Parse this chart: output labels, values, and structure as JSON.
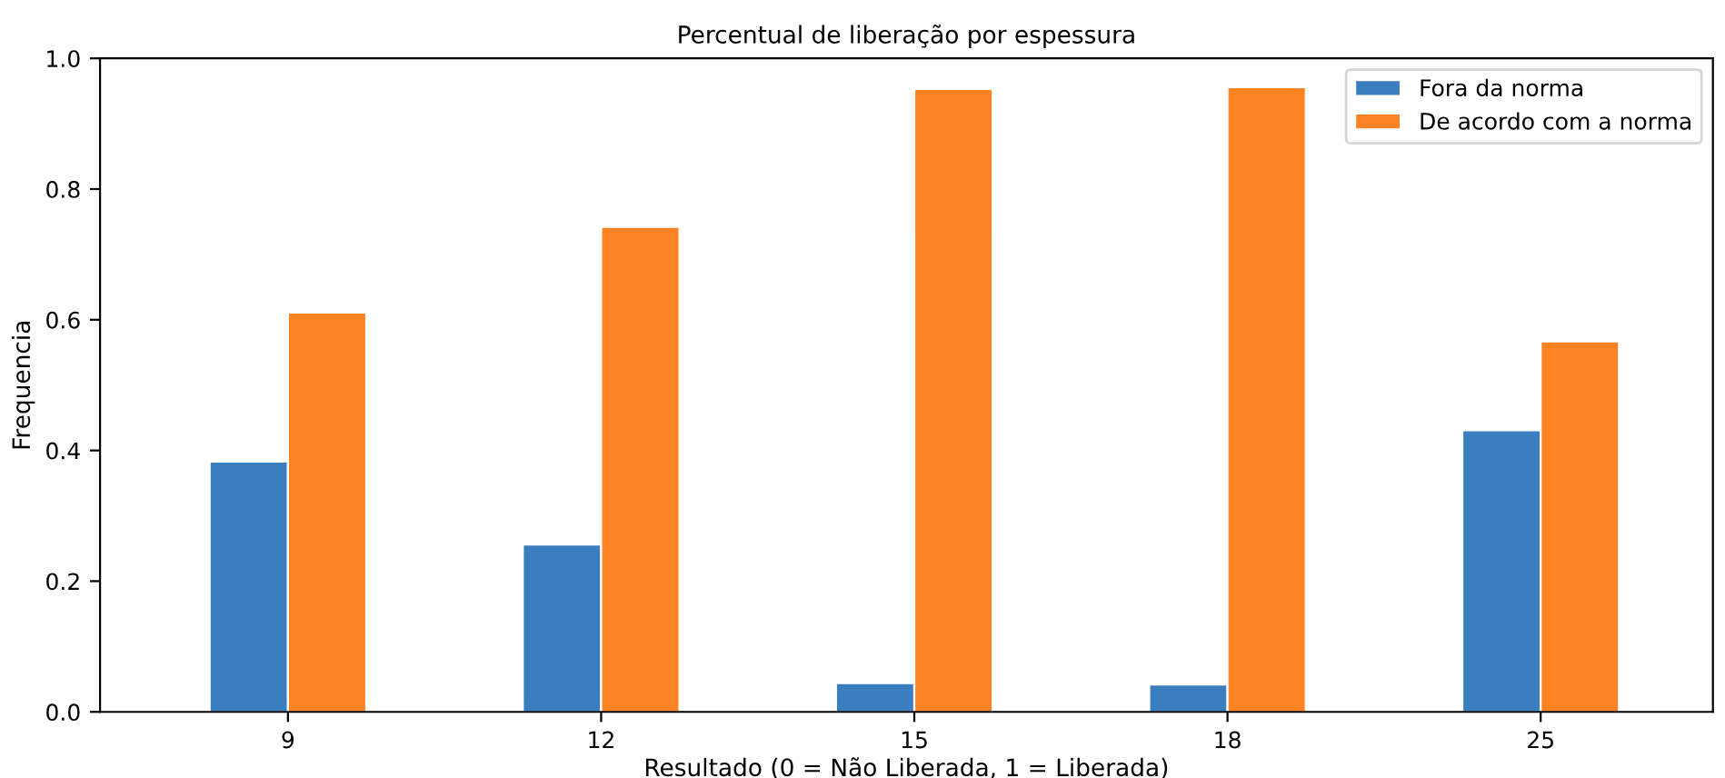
{
  "chart_data": {
    "type": "bar",
    "title": "Percentual de liberação por espessura",
    "xlabel": "Resultado (0 = Não Liberada, 1 = Liberada)",
    "ylabel": "Frequencia",
    "categories": [
      "9",
      "12",
      "15",
      "18",
      "25"
    ],
    "series": [
      {
        "name": "Fora da norma",
        "color": "#3a7ebf",
        "values": [
          0.383,
          0.256,
          0.044,
          0.042,
          0.431
        ]
      },
      {
        "name": "De acordo com a norma",
        "color": "#fd8224",
        "values": [
          0.611,
          0.742,
          0.953,
          0.956,
          0.567
        ]
      }
    ],
    "ylim": [
      0.0,
      1.0
    ],
    "yticks": [
      {
        "value": 0.0,
        "label": "0.0"
      },
      {
        "value": 0.2,
        "label": "0.2"
      },
      {
        "value": 0.4,
        "label": "0.4"
      },
      {
        "value": 0.6,
        "label": "0.6"
      },
      {
        "value": 0.8,
        "label": "0.8"
      },
      {
        "value": 1.0,
        "label": "1.0"
      }
    ],
    "grid": false,
    "legend": "top right"
  }
}
